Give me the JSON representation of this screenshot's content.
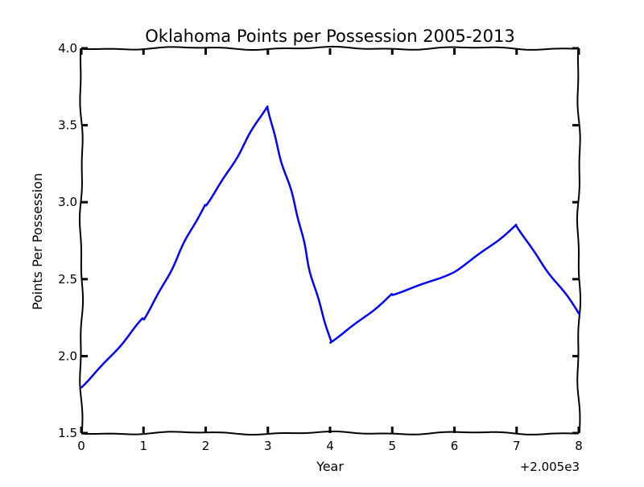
{
  "chart_data": {
    "type": "line",
    "title": "Oklahoma Points per Possession 2005-2013",
    "xlabel": "Year",
    "ylabel": "Points Per Possession",
    "x_offset_label": "+2.005e3",
    "xlim": [
      0,
      8
    ],
    "ylim": [
      1.5,
      4.0
    ],
    "x_ticks": [
      0,
      1,
      2,
      3,
      4,
      5,
      6,
      7,
      8
    ],
    "x_tick_labels": [
      "0",
      "1",
      "2",
      "3",
      "4",
      "5",
      "6",
      "7",
      "8"
    ],
    "y_ticks": [
      1.5,
      2.0,
      2.5,
      3.0,
      3.5,
      4.0
    ],
    "y_tick_labels": [
      "1.5",
      "2.0",
      "2.5",
      "3.0",
      "3.5",
      "4.0"
    ],
    "grid": false,
    "series": [
      {
        "color": "#0000ff",
        "x": [
          0,
          1,
          2,
          3,
          4,
          5,
          6,
          7,
          8
        ],
        "values": [
          1.8,
          2.24,
          2.98,
          3.62,
          2.09,
          2.4,
          2.55,
          2.85,
          2.27
        ]
      }
    ]
  }
}
